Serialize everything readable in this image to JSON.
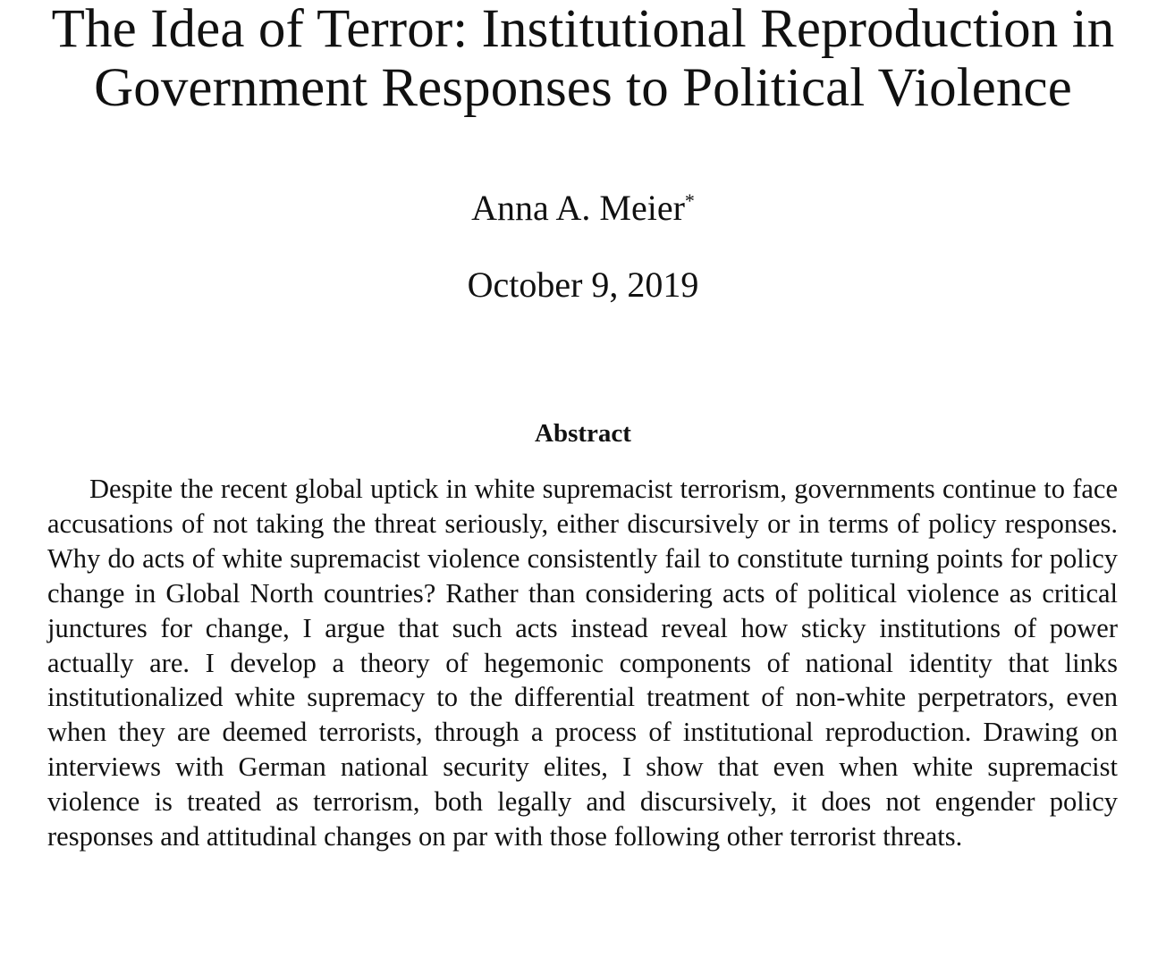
{
  "paper": {
    "title_line_1": "The Idea of Terror: Institutional Reproduction in",
    "title_line_2": "Government Responses to Political Violence",
    "author": "Anna A. Meier",
    "author_footnote_mark": "*",
    "date": "October 9, 2019",
    "abstract_heading": "Abstract",
    "abstract_text": "Despite the recent global uptick in white supremacist terrorism, governments continue to face accusations of not taking the threat seriously, either discursively or in terms of policy responses. Why do acts of white supremacist violence consistently fail to constitute turning points for policy change in Global North countries? Rather than considering acts of political violence as critical junctures for change, I argue that such acts instead reveal how sticky institutions of power actually are. I develop a theory of hegemonic components of national identity that links institutionalized white supremacy to the differential treatment of non-white perpetrators, even when they are deemed terrorists, through a process of institutional reproduction. Drawing on interviews with German national security elites, I show that even when white supremacist violence is treated as terrorism, both legally and discursively, it does not engender policy responses and attitudinal changes on par with those following other terrorist threats."
  }
}
